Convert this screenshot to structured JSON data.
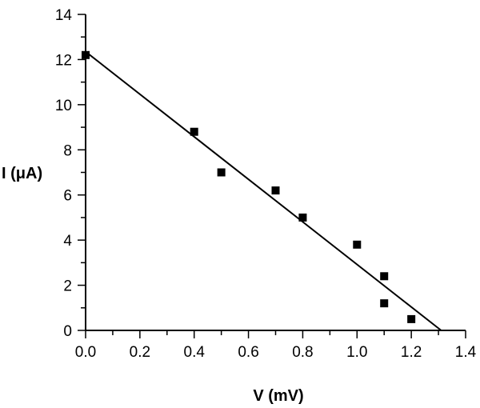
{
  "chart_data": {
    "type": "scatter",
    "xlabel": "V (mV)",
    "ylabel": "I (μA)",
    "xlim": [
      0,
      1.4
    ],
    "ylim": [
      0,
      14
    ],
    "x_ticks": [
      "0.0",
      "0.2",
      "0.4",
      "0.6",
      "0.8",
      "1.0",
      "1.2",
      "1.4"
    ],
    "y_ticks": [
      "0",
      "2",
      "4",
      "6",
      "8",
      "10",
      "12",
      "14"
    ],
    "x_tick_values": [
      0,
      0.2,
      0.4,
      0.6,
      0.8,
      1.0,
      1.2,
      1.4
    ],
    "y_tick_values": [
      0,
      2,
      4,
      6,
      8,
      10,
      12,
      14
    ],
    "x_minor_step": 0.1,
    "y_minor_step": 1,
    "grid": false,
    "legend": "none",
    "series": [
      {
        "marker": "square",
        "color": "#000000",
        "points": [
          {
            "x": 0.0,
            "y": 12.2
          },
          {
            "x": 0.4,
            "y": 8.8
          },
          {
            "x": 0.5,
            "y": 7.0
          },
          {
            "x": 0.7,
            "y": 6.2
          },
          {
            "x": 0.8,
            "y": 5.0
          },
          {
            "x": 1.0,
            "y": 3.8
          },
          {
            "x": 1.1,
            "y": 2.4
          },
          {
            "x": 1.1,
            "y": 1.2
          },
          {
            "x": 1.2,
            "y": 0.5
          }
        ]
      }
    ],
    "fit_line": {
      "color": "#000000",
      "points": [
        {
          "x": 0.0,
          "y": 12.35
        },
        {
          "x": 1.31,
          "y": 0.0
        }
      ]
    }
  }
}
